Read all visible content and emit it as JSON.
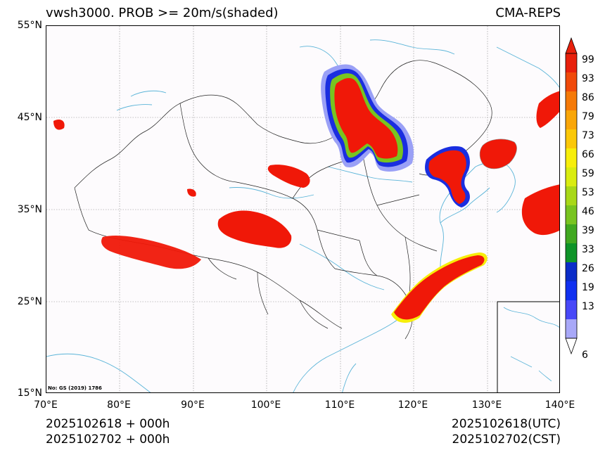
{
  "title": {
    "left": "vwsh3000. PROB >= 20m/s(shaded)",
    "right": "CMA-REPS"
  },
  "latitude_labels": [
    "55°N",
    "45°N",
    "35°N",
    "25°N",
    "15°N"
  ],
  "longitude_labels": [
    "70°E",
    "80°E",
    "90°E",
    "100°E",
    "110°E",
    "120°E",
    "130°E",
    "140°E"
  ],
  "map_note": "No: GS (2019) 1786",
  "footer": {
    "init_utc": "2025102618  +  000h",
    "init_cst": "2025102702  +  000h",
    "valid_utc": "2025102618(UTC)",
    "valid_cst": "2025102702(CST)"
  },
  "colorbar": {
    "labels": [
      "99",
      "93",
      "86",
      "79",
      "73",
      "66",
      "59",
      "53",
      "46",
      "39",
      "33",
      "26",
      "19",
      "13",
      "6"
    ],
    "colors": [
      "#e8200c",
      "#f04a0a",
      "#f57a08",
      "#f9a608",
      "#fbc808",
      "#f7ee0a",
      "#d9ec10",
      "#a8d818",
      "#78c420",
      "#40a820",
      "#0e9428",
      "#0a2cc8",
      "#1030f0",
      "#4848f8",
      "#a8a8f8"
    ]
  },
  "colors": {
    "prob_high": "#f01808",
    "coast": "#5ab4d8",
    "border": "#222222"
  },
  "chart_data": {
    "type": "heatmap",
    "xlim": [
      70,
      140
    ],
    "ylim": [
      15,
      55
    ],
    "colorbar_levels": [
      6,
      13,
      19,
      26,
      33,
      39,
      46,
      53,
      59,
      66,
      73,
      79,
      86,
      93,
      99
    ]
  }
}
